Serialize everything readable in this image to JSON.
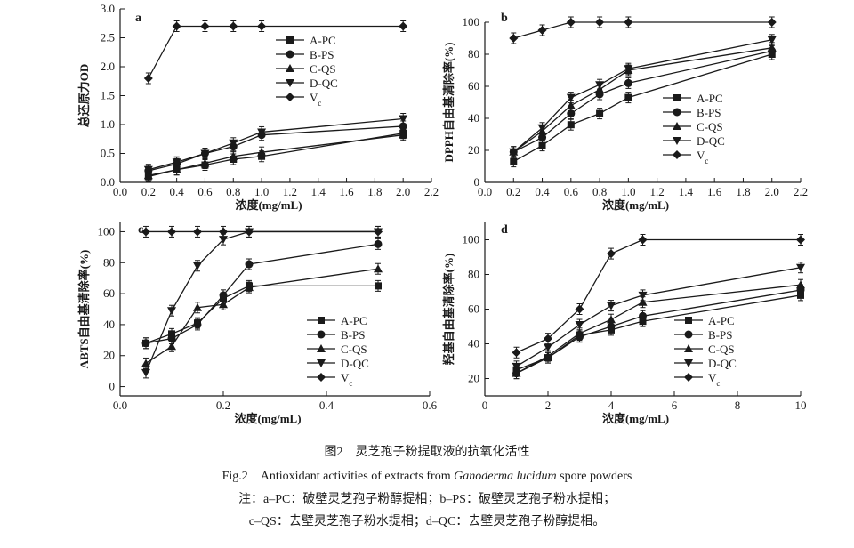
{
  "caption": {
    "cn": "图2　灵芝孢子粉提取液的抗氧化活性",
    "en_prefix": "Fig.2　Antioxidant activities of extracts from ",
    "en_species": "Ganoderma lucidum",
    "en_suffix": " spore powders",
    "note_line1": "注：a–PC：破壁灵芝孢子粉醇提相；b–PS：破壁灵芝孢子粉水提相；",
    "note_line2": "c–QS：去壁灵芝孢子粉水提相；d–QC：去壁灵芝孢子粉醇提相。"
  },
  "chart_data": [
    {
      "panel": "a",
      "type": "line",
      "title": "",
      "xlabel": "浓度(mg/mL)",
      "ylabel": "总还原力OD",
      "xlim": [
        0.0,
        2.2
      ],
      "ylim": [
        0.0,
        3.0
      ],
      "xticks": [
        "0.0",
        "0.2",
        "0.4",
        "0.6",
        "0.8",
        "1.0",
        "1.2",
        "1.4",
        "1.6",
        "1.8",
        "2.0",
        "2.2"
      ],
      "yticks": [
        "0.0",
        "0.5",
        "1.0",
        "1.5",
        "2.0",
        "2.5",
        "3.0"
      ],
      "legend_position": "center-right",
      "x": [
        0.2,
        0.4,
        0.6,
        0.8,
        1.0,
        2.0
      ],
      "series": [
        {
          "name": "A-PC",
          "marker": "square",
          "values": [
            0.1,
            0.22,
            0.3,
            0.4,
            0.45,
            0.85
          ]
        },
        {
          "name": "B-PS",
          "marker": "circle",
          "values": [
            0.2,
            0.32,
            0.5,
            0.62,
            0.82,
            0.97
          ]
        },
        {
          "name": "C-QS",
          "marker": "triangle",
          "values": [
            0.12,
            0.22,
            0.33,
            0.45,
            0.52,
            0.82
          ]
        },
        {
          "name": "D-QC",
          "marker": "tri-down",
          "values": [
            0.22,
            0.35,
            0.5,
            0.68,
            0.87,
            1.1
          ]
        },
        {
          "name": "V",
          "name_sub": "c",
          "marker": "diamond",
          "values": [
            1.8,
            2.7,
            2.7,
            2.7,
            2.7,
            2.7
          ]
        }
      ]
    },
    {
      "panel": "b",
      "type": "line",
      "title": "",
      "xlabel": "浓度(mg/mL)",
      "ylabel": "DPPH自由基清除率(%)",
      "xlim": [
        0.0,
        2.2
      ],
      "ylim": [
        0,
        100
      ],
      "xticks": [
        "0.0",
        "0.2",
        "0.4",
        "0.6",
        "0.8",
        "1.0",
        "1.2",
        "1.4",
        "1.6",
        "1.8",
        "2.0",
        "2.2"
      ],
      "yticks": [
        "0",
        "20",
        "40",
        "60",
        "80",
        "100"
      ],
      "legend_position": "bottom-right",
      "x": [
        0.2,
        0.4,
        0.6,
        0.8,
        1.0,
        2.0
      ],
      "series": [
        {
          "name": "A-PC",
          "marker": "square",
          "values": [
            13,
            23,
            36,
            43,
            53,
            80
          ]
        },
        {
          "name": "B-PS",
          "marker": "circle",
          "values": [
            19,
            28,
            43,
            55,
            62,
            82
          ]
        },
        {
          "name": "C-QS",
          "marker": "triangle",
          "values": [
            19,
            32,
            48,
            58,
            70,
            84
          ]
        },
        {
          "name": "D-QC",
          "marker": "tri-down",
          "values": [
            19,
            34,
            53,
            61,
            71,
            89
          ]
        },
        {
          "name": "V",
          "name_sub": "c",
          "marker": "diamond",
          "values": [
            90,
            95,
            100,
            100,
            100,
            100
          ]
        }
      ]
    },
    {
      "panel": "c",
      "type": "line",
      "title": "",
      "xlabel": "浓度(mg/mL)",
      "ylabel": "ABTS自由基清除率(%)",
      "xlim": [
        0.0,
        0.6
      ],
      "ylim": [
        -6,
        106
      ],
      "xticks": [
        "0.0",
        "0.2",
        "0.4",
        "0.6"
      ],
      "yticks": [
        "0",
        "20",
        "40",
        "60",
        "80",
        "100"
      ],
      "legend_position": "bottom-right",
      "x": [
        0.05,
        0.1,
        0.15,
        0.2,
        0.25,
        0.5
      ],
      "series": [
        {
          "name": "A-PC",
          "marker": "square",
          "values": [
            28,
            34,
            41,
            57,
            65,
            65
          ]
        },
        {
          "name": "B-PS",
          "marker": "circle",
          "values": [
            28,
            31,
            40,
            59,
            79,
            92
          ]
        },
        {
          "name": "C-QS",
          "marker": "triangle",
          "values": [
            15,
            26,
            51,
            53,
            64,
            76
          ]
        },
        {
          "name": "D-QC",
          "marker": "tri-down",
          "values": [
            9,
            49,
            78,
            95,
            100,
            100
          ]
        },
        {
          "name": "V",
          "name_sub": "c",
          "marker": "diamond",
          "values": [
            100,
            100,
            100,
            100,
            100,
            100
          ]
        }
      ]
    },
    {
      "panel": "d",
      "type": "line",
      "title": "",
      "xlabel": "浓度(mg/mL)",
      "ylabel": "羟基自由基清除率(%)",
      "xlim": [
        0,
        10
      ],
      "ylim": [
        10,
        110
      ],
      "xticks": [
        "0",
        "2",
        "4",
        "6",
        "8",
        "10"
      ],
      "yticks": [
        "20",
        "40",
        "60",
        "80",
        "100"
      ],
      "legend_position": "bottom-right",
      "x": [
        1,
        2,
        3,
        4,
        5,
        10
      ],
      "series": [
        {
          "name": "A-PC",
          "marker": "square",
          "values": [
            25,
            32,
            45,
            48,
            53,
            68
          ]
        },
        {
          "name": "B-PS",
          "marker": "circle",
          "values": [
            23,
            32,
            44,
            50,
            56,
            71
          ]
        },
        {
          "name": "C-QS",
          "marker": "triangle",
          "values": [
            23,
            33,
            46,
            54,
            64,
            74
          ]
        },
        {
          "name": "D-QC",
          "marker": "tri-down",
          "values": [
            27,
            38,
            51,
            62,
            68,
            84
          ]
        },
        {
          "name": "V",
          "name_sub": "c",
          "marker": "diamond",
          "values": [
            35,
            43,
            60,
            92,
            100,
            100
          ]
        }
      ]
    }
  ]
}
